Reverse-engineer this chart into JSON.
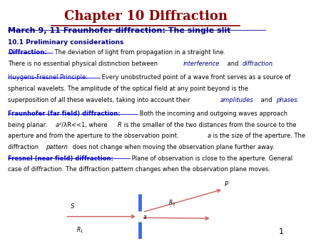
{
  "title": "Chapter 10 Diffraction",
  "title_color": "#8B0000",
  "subtitle": "March 9, 11 Fraunhofer diffraction: The single slit",
  "subtitle_color": "#00008B",
  "section_header": "10.1 Preliminary considerations",
  "section_header_color": "#00008B",
  "background_color": "#ffffff",
  "page_number": "1",
  "arrow_color": "#CD5C5C",
  "slit_color": "#4169E1"
}
